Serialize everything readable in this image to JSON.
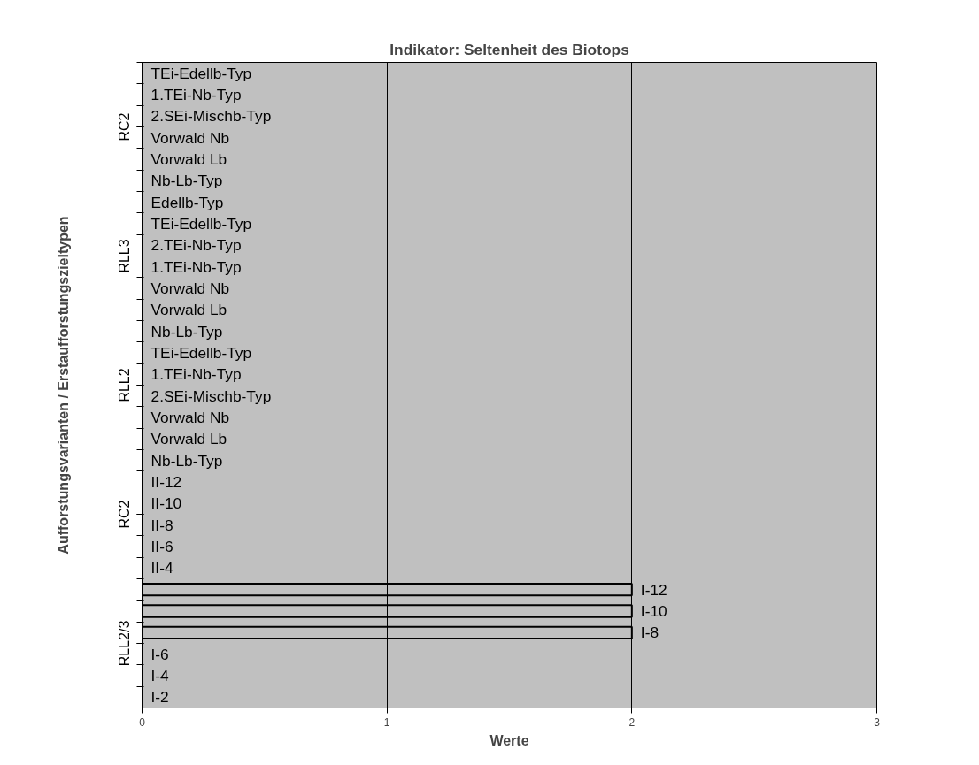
{
  "chart_data": {
    "type": "bar",
    "orientation": "horizontal",
    "title": "Indikator: Seltenheit des Biotops",
    "xlabel": "Werte",
    "ylabel": "Aufforstungsvarianten / Erstaufforstungszieltypen",
    "categories": [
      "TEi-Edellb-Typ",
      "1.TEi-Nb-Typ",
      "2.SEi-Mischb-Typ",
      "Vorwald Nb",
      "Vorwald Lb",
      "Nb-Lb-Typ",
      "Edellb-Typ",
      "TEi-Edellb-Typ",
      "2.TEi-Nb-Typ",
      "1.TEi-Nb-Typ",
      "Vorwald Nb",
      "Vorwald Lb",
      "Nb-Lb-Typ",
      "TEi-Edellb-Typ",
      "1.TEi-Nb-Typ",
      "2.SEi-Mischb-Typ",
      "Vorwald Nb",
      "Vorwald Lb",
      "Nb-Lb-Typ",
      "II-12",
      "II-10",
      "II-8",
      "II-6",
      "II-4",
      "I-12",
      "I-10",
      "I-8",
      "I-6",
      "I-4",
      "I-2"
    ],
    "values": [
      0,
      0,
      0,
      0,
      0,
      0,
      0,
      0,
      0,
      0,
      0,
      0,
      0,
      0,
      0,
      0,
      0,
      0,
      0,
      0,
      0,
      0,
      0,
      0,
      2,
      2,
      2,
      0,
      0,
      0
    ],
    "color": "#000000",
    "xlim": [
      0,
      3
    ],
    "xticks": [
      0,
      1,
      2,
      3
    ],
    "grid": "x",
    "annotations": [
      "RC2",
      "RLL3",
      "RLL2",
      "RC2",
      "RLL2/3"
    ]
  }
}
